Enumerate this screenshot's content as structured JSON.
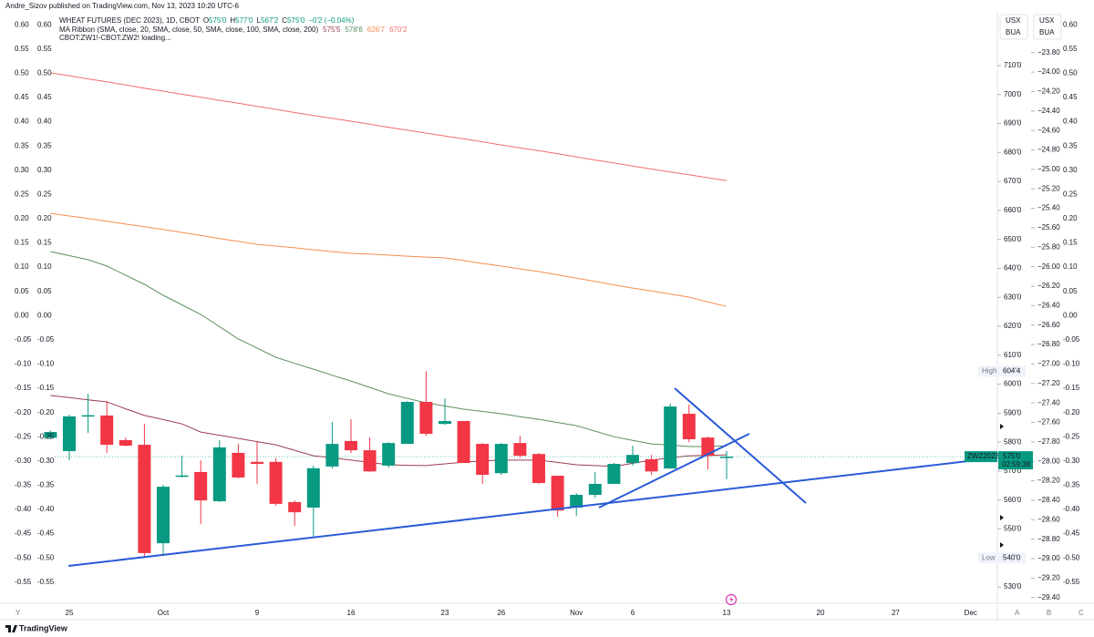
{
  "header": {
    "published": "Andre_Sizov published on TradingView.com, Nov 13, 2023 10:20 UTC-6",
    "symbol": "WHEAT FUTURES (DEC 2023), 1D, CBOT",
    "ohlc": [
      "O",
      "575'0",
      "H",
      "577'0",
      "L",
      "567'2",
      "C",
      "575'0"
    ],
    "change": "−0'2 (−0.04%)",
    "indicator": "MA Ribbon (SMA, close, 20, SMA, close, 50, SMA, close, 100, SMA, close, 200)",
    "spread": "CBOT:ZW1!-CBOT:ZW2! loading...",
    "currency_boxes": [
      [
        "USX",
        "BUA"
      ],
      [
        "USX",
        "BUA"
      ]
    ],
    "corner_letters": [
      "Y",
      "A",
      "B",
      "C"
    ],
    "logo": "TradingView"
  },
  "chart_data": {
    "type": "candlestick",
    "up_color": "#089981",
    "down_color": "#f23645",
    "categories": [
      null,
      "25",
      null,
      null,
      null,
      null,
      "Oct",
      null,
      null,
      null,
      null,
      "9",
      null,
      null,
      null,
      null,
      "16",
      null,
      null,
      null,
      null,
      "23",
      null,
      null,
      "26",
      null,
      null,
      null,
      "Nov",
      null,
      null,
      "6",
      null,
      null,
      null,
      null,
      "13",
      null,
      null,
      null,
      null,
      "20",
      null,
      null,
      null,
      "27",
      null,
      null,
      null,
      "Dec"
    ],
    "open": [
      581.5,
      576.9,
      589.0,
      589.2,
      580.7,
      579.1,
      545.1,
      568.2,
      569.7,
      559.6,
      576.3,
      573.2,
      573.2,
      559.3,
      557.4,
      571.6,
      580.4,
      577.2,
      571.9,
      579.4,
      593.9,
      586.3,
      587.3,
      579.4,
      569.3,
      579.7,
      575.9,
      568.4,
      557.4,
      561.8,
      565.6,
      572.8,
      574.1,
      570.9,
      589.8,
      581.6,
      575,
      null,
      null,
      null,
      null,
      null,
      null,
      null,
      null,
      null,
      null,
      null,
      null,
      null
    ],
    "high": [
      584,
      589.5,
      596.7,
      594.2,
      581.6,
      586.3,
      565.3,
      575.3,
      573.8,
      580.7,
      579.4,
      580.4,
      574.5,
      559.9,
      571.9,
      587.0,
      587.9,
      581.6,
      580.0,
      594.2,
      604.5,
      595.1,
      587.3,
      579.7,
      579.7,
      582.2,
      576.3,
      568.4,
      562.4,
      569.7,
      572.8,
      578.8,
      575.6,
      593.3,
      593.0,
      581.9,
      577,
      null,
      null,
      null,
      null,
      null,
      null,
      null,
      null,
      null,
      null,
      null,
      null,
      null
    ],
    "low": [
      581,
      573.8,
      583.2,
      576.3,
      578.5,
      540,
      541.3,
      567.8,
      551.7,
      559.3,
      567.5,
      565.6,
      558.0,
      551.1,
      547.3,
      570.9,
      576.3,
      569.7,
      571.2,
      579.4,
      582.2,
      586.0,
      572.8,
      565.6,
      568.7,
      574.7,
      565.6,
      554.2,
      554.6,
      560.8,
      565.6,
      571.9,
      568.7,
      570.9,
      580.0,
      570.6,
      567.25,
      null,
      null,
      null,
      null,
      null,
      null,
      null,
      null,
      null,
      null,
      null,
      null,
      null
    ],
    "close": [
      583.5,
      588.9,
      589.3,
      579.1,
      578.8,
      541.7,
      564.6,
      568.5,
      559.9,
      578.2,
      567.8,
      572.5,
      558.7,
      555.8,
      571.0,
      579.4,
      577.2,
      569.9,
      579.7,
      593.9,
      582.9,
      587.3,
      572.8,
      568.7,
      579.4,
      575.3,
      565.9,
      556.4,
      561.8,
      565.6,
      572.5,
      575.6,
      569.9,
      592.3,
      581.0,
      575.25,
      575,
      null,
      null,
      null,
      null,
      null,
      null,
      null,
      null,
      null,
      null,
      null,
      null,
      null
    ],
    "series": [
      {
        "color": "#9c3e4f",
        "last_label": "575'5",
        "values": [
          596.1,
          595.4,
          594.6,
          593.9,
          591.5,
          589.2,
          587.8,
          586.3,
          583.5,
          582.4,
          581.3,
          580.2,
          579.1,
          577.2,
          575.3,
          574.6,
          573.8,
          573.0,
          572.2,
          572.0,
          571.9,
          572.5,
          573.1,
          573.5,
          573.8,
          573.8,
          573.8,
          573.0,
          572.2,
          571.9,
          571.6,
          572.7,
          573.8,
          574.6,
          575.3,
          575.4,
          575.625,
          null,
          null,
          null,
          null,
          null,
          null,
          null,
          null,
          null,
          null,
          null,
          null,
          null
        ]
      },
      {
        "color": "#5c8f5e",
        "last_label": "578'6",
        "values": [
          645.8,
          644.4,
          643.0,
          640.8,
          637.6,
          634.5,
          630.7,
          627.4,
          624.1,
          619.9,
          615.6,
          612.5,
          609.3,
          607.2,
          605.2,
          603.1,
          601.1,
          598.9,
          596.7,
          595.1,
          593.6,
          592.5,
          591.4,
          590.6,
          589.8,
          588.8,
          587.9,
          586.8,
          585.7,
          583.8,
          581.9,
          580.6,
          579.4,
          579.0,
          578.5,
          578.5,
          578.75,
          null,
          null,
          null,
          null,
          null,
          null,
          null,
          null,
          null,
          null,
          null,
          null,
          null
        ]
      },
      {
        "color": "#f68d4e",
        "last_label": "626'7",
        "values": [
          659.0,
          658.1,
          657.2,
          656.3,
          655.3,
          654.4,
          653.4,
          652.4,
          651.4,
          650.3,
          649.3,
          648.3,
          647.7,
          647.1,
          646.4,
          645.8,
          645.2,
          644.9,
          644.6,
          644.2,
          643.9,
          643.6,
          642.7,
          641.7,
          640.8,
          639.8,
          638.9,
          637.8,
          636.6,
          635.5,
          634.3,
          633.2,
          632.2,
          631.1,
          630.1,
          628.4,
          626.875,
          null,
          null,
          null,
          null,
          null,
          null,
          null,
          null,
          null,
          null,
          null,
          null,
          null
        ]
      },
      {
        "color": "#f26d6d",
        "last_label": "670'2",
        "values": [
          707.5,
          706.5,
          705.4,
          704.4,
          703.3,
          702.2,
          701.2,
          700.1,
          699.1,
          698.0,
          697.0,
          695.9,
          694.9,
          693.8,
          692.8,
          691.8,
          690.8,
          689.8,
          688.7,
          687.7,
          686.7,
          685.7,
          684.7,
          683.7,
          682.6,
          681.6,
          680.6,
          679.6,
          678.5,
          677.4,
          676.4,
          675.3,
          674.3,
          673.3,
          672.3,
          671.3,
          670.25,
          null,
          null,
          null,
          null,
          null,
          null,
          null,
          null,
          null,
          null,
          null,
          null,
          null
        ]
      }
    ],
    "ylim": [
      525,
      728.25
    ],
    "yticks": [
      {
        "value": 710,
        "label": "710'0"
      },
      {
        "value": 700,
        "label": "700'0"
      },
      {
        "value": 690,
        "label": "690'0"
      },
      {
        "value": 680,
        "label": "680'0"
      },
      {
        "value": 670,
        "label": "670'0"
      },
      {
        "value": 660,
        "label": "660'0"
      },
      {
        "value": 650,
        "label": "650'0"
      },
      {
        "value": 640,
        "label": "640'0"
      },
      {
        "value": 630,
        "label": "630'0"
      },
      {
        "value": 620,
        "label": "620'0"
      },
      {
        "value": 610,
        "label": "610'0"
      },
      {
        "value": 600,
        "label": "600'0"
      },
      {
        "value": 590,
        "label": "590'0"
      },
      {
        "value": 580,
        "label": "580'0"
      },
      {
        "value": 570,
        "label": "570'0"
      },
      {
        "value": 560,
        "label": "560'0"
      },
      {
        "value": 550,
        "label": "550'0"
      },
      {
        "value": 540,
        "label": "540'0"
      },
      {
        "value": 530,
        "label": "530'0"
      }
    ],
    "y2lim": [
      -0.59,
      0.625
    ],
    "y2ticks": [
      {
        "value": 0.6,
        "label": "0.60"
      },
      {
        "value": 0.55,
        "label": "0.55"
      },
      {
        "value": 0.5,
        "label": "0.50"
      },
      {
        "value": 0.45,
        "label": "0.45"
      },
      {
        "value": 0.4,
        "label": "0.40"
      },
      {
        "value": 0.35,
        "label": "0.35"
      },
      {
        "value": 0.3,
        "label": "0.30"
      },
      {
        "value": 0.25,
        "label": "0.25"
      },
      {
        "value": 0.2,
        "label": "0.20"
      },
      {
        "value": 0.15,
        "label": "0.15"
      },
      {
        "value": 0.1,
        "label": "0.10"
      },
      {
        "value": 0.05,
        "label": "0.05"
      },
      {
        "value": 0,
        "label": "0.00"
      },
      {
        "value": -0.05,
        "label": "-0.05"
      },
      {
        "value": -0.1,
        "label": "-0.10"
      },
      {
        "value": -0.15,
        "label": "-0.15"
      },
      {
        "value": -0.2,
        "label": "-0.20"
      },
      {
        "value": -0.25,
        "label": "-0.25"
      },
      {
        "value": -0.3,
        "label": "-0.30"
      },
      {
        "value": -0.35,
        "label": "-0.35"
      },
      {
        "value": -0.4,
        "label": "-0.40"
      },
      {
        "value": -0.45,
        "label": "-0.45"
      },
      {
        "value": -0.5,
        "label": "-0.50"
      },
      {
        "value": -0.55,
        "label": "-0.55"
      }
    ],
    "y3lim": [
      -29.44,
      -23.39
    ],
    "y3ticks": [
      {
        "value": -23.8,
        "label": "−23.80"
      },
      {
        "value": -24.0,
        "label": "−24.00"
      },
      {
        "value": -24.2,
        "label": "−24.20"
      },
      {
        "value": -24.4,
        "label": "−24.40"
      },
      {
        "value": -24.6,
        "label": "−24.60"
      },
      {
        "value": -24.8,
        "label": "−24.80"
      },
      {
        "value": -25.0,
        "label": "−25.00"
      },
      {
        "value": -25.2,
        "label": "−25.20"
      },
      {
        "value": -25.4,
        "label": "−25.40"
      },
      {
        "value": -25.6,
        "label": "−25.60"
      },
      {
        "value": -25.8,
        "label": "−25.80"
      },
      {
        "value": -26.0,
        "label": "−26.00"
      },
      {
        "value": -26.2,
        "label": "−26.20"
      },
      {
        "value": -26.4,
        "label": "−26.40"
      },
      {
        "value": -26.6,
        "label": "−26.60"
      },
      {
        "value": -26.8,
        "label": "−26.80"
      },
      {
        "value": -27.0,
        "label": "−27.00"
      },
      {
        "value": -27.2,
        "label": "−27.20"
      },
      {
        "value": -27.4,
        "label": "−27.40"
      },
      {
        "value": -27.6,
        "label": "−27.60"
      },
      {
        "value": -27.8,
        "label": "−27.80"
      },
      {
        "value": -28.0,
        "label": "−28.00"
      },
      {
        "value": -28.2,
        "label": "−28.20"
      },
      {
        "value": -28.4,
        "label": "−28.40"
      },
      {
        "value": -28.6,
        "label": "−28.60"
      },
      {
        "value": -28.8,
        "label": "−28.80"
      },
      {
        "value": -29.0,
        "label": "−29.00"
      },
      {
        "value": -29.2,
        "label": "−29.20"
      },
      {
        "value": -29.4,
        "label": "−29.40"
      }
    ],
    "high_marker": {
      "name": "High",
      "value": 604.5,
      "label": "604'4"
    },
    "low_marker": {
      "name": "Low",
      "value": 540,
      "label": "540'0"
    },
    "last": {
      "name": "ZWZ2023",
      "value": 575,
      "label": "575'0",
      "countdown": "02:59:38"
    },
    "grid": false
  }
}
